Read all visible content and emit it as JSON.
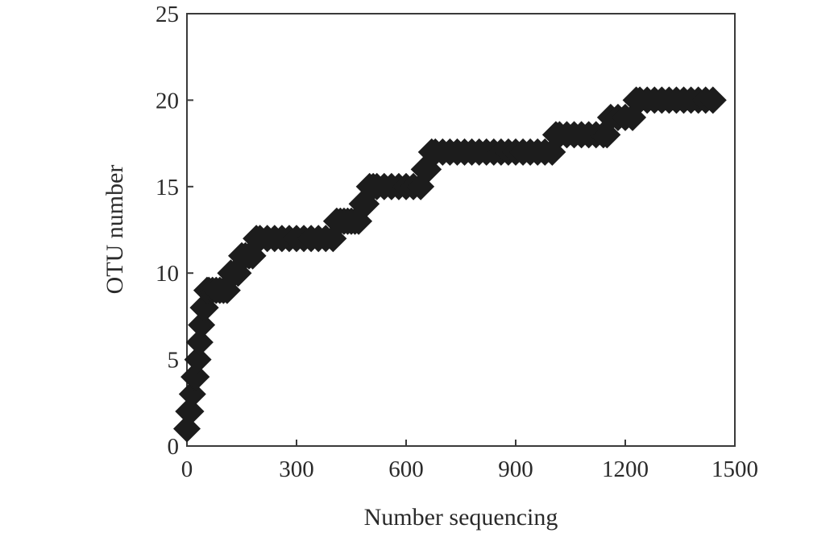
{
  "chart_data": {
    "type": "scatter",
    "title": "",
    "xlabel": "Number sequencing",
    "ylabel": "OTU number",
    "xlim": [
      0,
      1500
    ],
    "ylim": [
      0,
      25
    ],
    "xticks": [
      0,
      300,
      600,
      900,
      1200,
      1500
    ],
    "yticks": [
      0,
      5,
      10,
      15,
      20,
      25
    ],
    "xtick_labels": [
      "0",
      "300",
      "600",
      "900",
      "1200",
      "1500"
    ],
    "ytick_labels": [
      "0",
      "5",
      "10",
      "15",
      "20",
      "25"
    ],
    "grid": false,
    "legend": "none",
    "marker": "diamond",
    "marker_color": "#1c1c1c",
    "series": [
      {
        "x": [
          0,
          5,
          10,
          15,
          20,
          25,
          30,
          35,
          40,
          45,
          50,
          55,
          60,
          70,
          80,
          90,
          100,
          110,
          120,
          130,
          140,
          150,
          160,
          170,
          180,
          190,
          200,
          220,
          240,
          260,
          280,
          300,
          320,
          340,
          360,
          380,
          400,
          410,
          420,
          430,
          440,
          450,
          460,
          470,
          480,
          490,
          500,
          510,
          520,
          540,
          560,
          580,
          600,
          620,
          640,
          650,
          660,
          670,
          680,
          700,
          720,
          740,
          760,
          780,
          800,
          820,
          840,
          860,
          880,
          900,
          920,
          940,
          960,
          980,
          1000,
          1010,
          1020,
          1040,
          1060,
          1080,
          1100,
          1120,
          1140,
          1150,
          1160,
          1180,
          1200,
          1220,
          1230,
          1240,
          1260,
          1280,
          1300,
          1320,
          1340,
          1360,
          1380,
          1400,
          1420,
          1440
        ],
        "y": [
          1,
          2,
          2,
          3,
          4,
          4,
          5,
          6,
          7,
          8,
          8,
          9,
          9,
          9,
          9,
          9,
          9,
          9,
          10,
          10,
          10,
          11,
          11,
          11,
          11,
          12,
          12,
          12,
          12,
          12,
          12,
          12,
          12,
          12,
          12,
          12,
          12,
          13,
          13,
          13,
          13,
          13,
          13,
          13,
          14,
          14,
          15,
          15,
          15,
          15,
          15,
          15,
          15,
          15,
          15,
          16,
          16,
          17,
          17,
          17,
          17,
          17,
          17,
          17,
          17,
          17,
          17,
          17,
          17,
          17,
          17,
          17,
          17,
          17,
          17,
          18,
          18,
          18,
          18,
          18,
          18,
          18,
          18,
          18,
          19,
          19,
          19,
          19,
          20,
          20,
          20,
          20,
          20,
          20,
          20,
          20,
          20,
          20,
          20,
          20
        ]
      }
    ]
  }
}
